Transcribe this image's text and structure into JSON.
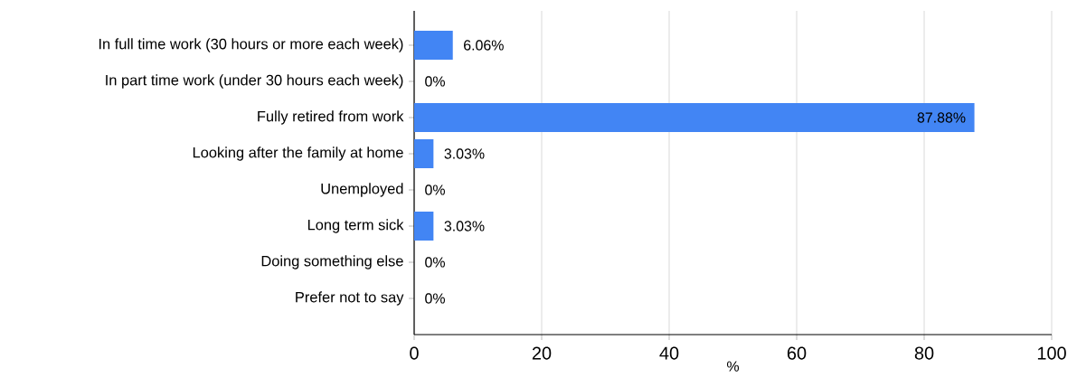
{
  "chart_data": {
    "type": "bar",
    "orientation": "horizontal",
    "xlabel": "%",
    "categories": [
      "In full time work (30 hours or more each week)",
      "In part time work (under 30 hours each week)",
      "Fully retired from work",
      "Looking after the family at home",
      "Unemployed",
      "Long term sick",
      "Doing something else",
      "Prefer not to say"
    ],
    "values": [
      6.06,
      0,
      87.88,
      3.03,
      0,
      3.03,
      0,
      0
    ],
    "value_labels": [
      "6.06%",
      "0%",
      "87.88%",
      "3.03%",
      "0%",
      "3.03%",
      "0%",
      "0%"
    ],
    "color": "#4285f4",
    "xlim": [
      0,
      100
    ],
    "xticks": [
      0,
      20,
      40,
      60,
      80,
      100
    ],
    "grid": "x"
  }
}
